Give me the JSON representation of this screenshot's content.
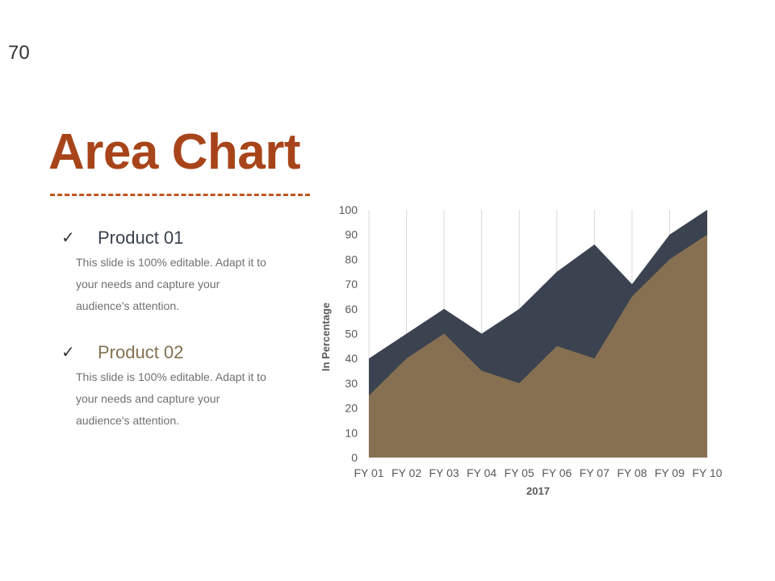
{
  "slide_number": "70",
  "title": "Area Chart",
  "products": [
    {
      "name": "Product 01",
      "description": "This slide is 100% editable. Adapt it to your needs and capture your audience's attention.",
      "check_icon": "checkmark-icon",
      "color": "#3a4250"
    },
    {
      "name": "Product 02",
      "description": "This slide is 100% editable. Adapt it to your needs and capture your audience's attention.",
      "check_icon": "checkmark-icon",
      "color": "#85704f"
    }
  ],
  "chart_data": {
    "type": "area",
    "categories": [
      "FY 01",
      "FY 02",
      "FY 03",
      "FY 04",
      "FY 05",
      "FY 06",
      "FY 07",
      "FY 08",
      "FY 09",
      "FY 10"
    ],
    "series": [
      {
        "values": [
          40,
          50,
          60,
          50,
          60,
          75,
          86,
          70,
          90,
          100
        ],
        "color": "#3b4250"
      },
      {
        "values": [
          25,
          40,
          50,
          35,
          30,
          45,
          40,
          65,
          80,
          90
        ],
        "color": "#877052"
      }
    ],
    "xlabel": "2017",
    "ylabel": "In Percentage",
    "ylim": [
      0,
      100
    ],
    "yticks": [
      0,
      10,
      20,
      30,
      40,
      50,
      60,
      70,
      80,
      90,
      100
    ],
    "grid": "vertical"
  }
}
